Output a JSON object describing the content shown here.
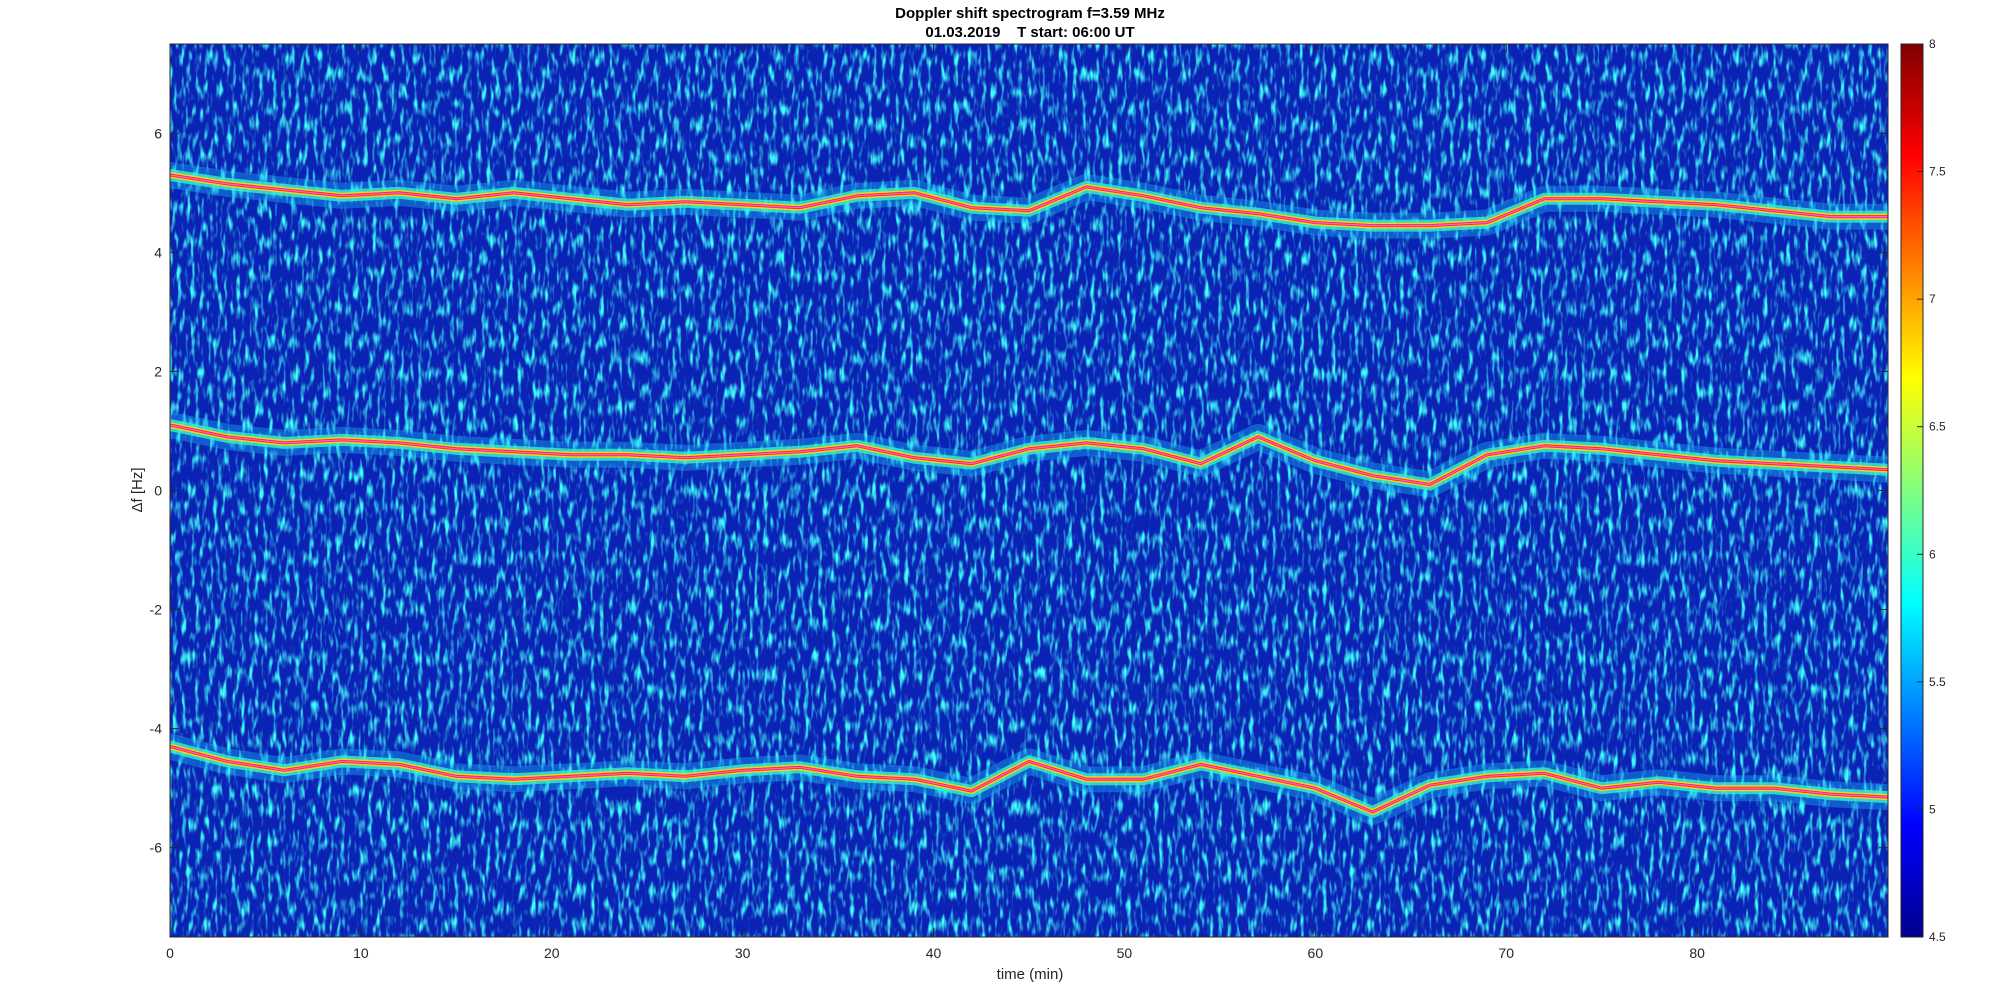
{
  "chart_data": {
    "type": "heatmap",
    "title": "Doppler shift spectrogram f=3.59 MHz",
    "subtitle": "01.03.2019    T start: 06:00 UT",
    "xlabel": "time (min)",
    "ylabel": "Δf [Hz]",
    "xlim": [
      0,
      90
    ],
    "ylim": [
      -7.5,
      7.5
    ],
    "xticks": [
      0,
      10,
      20,
      30,
      40,
      50,
      60,
      70,
      80
    ],
    "yticks": [
      -6,
      -4,
      -2,
      0,
      2,
      4,
      6
    ],
    "colorbar": {
      "colormap": "jet",
      "clim": [
        4.5,
        8
      ],
      "ticks": [
        4.5,
        5,
        5.5,
        6,
        6.5,
        7,
        7.5,
        8
      ]
    },
    "series": [
      {
        "x": [
          0,
          3,
          6,
          9,
          12,
          15,
          18,
          21,
          24,
          27,
          30,
          33,
          36,
          39,
          42,
          45,
          48,
          51,
          54,
          57,
          60,
          63,
          66,
          69,
          72,
          75,
          78,
          81,
          84,
          87,
          90
        ],
        "y": [
          5.3,
          5.15,
          5.05,
          4.95,
          5.0,
          4.9,
          5.0,
          4.9,
          4.8,
          4.85,
          4.8,
          4.75,
          4.95,
          5.0,
          4.75,
          4.7,
          5.1,
          4.95,
          4.75,
          4.65,
          4.5,
          4.45,
          4.45,
          4.5,
          4.9,
          4.9,
          4.85,
          4.8,
          4.7,
          4.6,
          4.6
        ]
      },
      {
        "x": [
          0,
          3,
          6,
          9,
          12,
          15,
          18,
          21,
          24,
          27,
          30,
          33,
          36,
          39,
          42,
          45,
          48,
          51,
          54,
          57,
          60,
          63,
          66,
          69,
          72,
          75,
          78,
          81,
          84,
          87,
          90
        ],
        "y": [
          1.1,
          0.9,
          0.8,
          0.85,
          0.8,
          0.7,
          0.65,
          0.6,
          0.6,
          0.55,
          0.6,
          0.65,
          0.75,
          0.55,
          0.45,
          0.7,
          0.8,
          0.7,
          0.45,
          0.9,
          0.5,
          0.25,
          0.1,
          0.6,
          0.75,
          0.7,
          0.6,
          0.5,
          0.45,
          0.4,
          0.35
        ]
      },
      {
        "x": [
          0,
          3,
          6,
          9,
          12,
          15,
          18,
          21,
          24,
          27,
          30,
          33,
          36,
          39,
          42,
          45,
          48,
          51,
          54,
          57,
          60,
          63,
          66,
          69,
          72,
          75,
          78,
          81,
          84,
          87,
          90
        ],
        "y": [
          -4.3,
          -4.55,
          -4.7,
          -4.55,
          -4.6,
          -4.8,
          -4.85,
          -4.8,
          -4.75,
          -4.8,
          -4.7,
          -4.65,
          -4.8,
          -4.85,
          -5.05,
          -4.55,
          -4.85,
          -4.85,
          -4.6,
          -4.8,
          -5.0,
          -5.4,
          -4.95,
          -4.8,
          -4.75,
          -5.0,
          -4.9,
          -5.0,
          -5.0,
          -5.1,
          -5.15
        ]
      }
    ]
  }
}
